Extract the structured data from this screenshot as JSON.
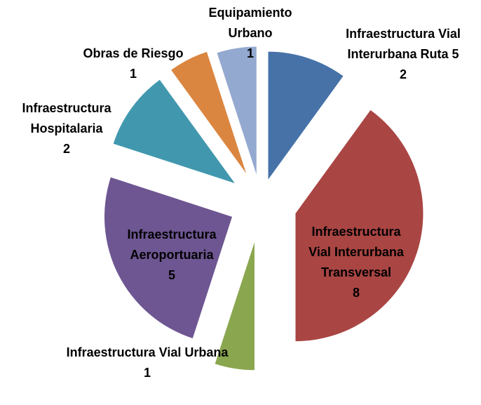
{
  "chart_data": {
    "type": "pie",
    "categories": [
      "Infraestructura Vial Interurbana Ruta 5",
      "Infraestructura Vial Interurbana Transversal",
      "Infraestructura Vial Urbana",
      "Infraestructura Aeroportuaria",
      "Infraestructura Hospitalaria",
      "Obras de Riesgo",
      "Equipamiento Urbano"
    ],
    "values": [
      2,
      8,
      1,
      5,
      2,
      1,
      1
    ],
    "colors": [
      "#4672a8",
      "#a94543",
      "#8aa64f",
      "#6e5692",
      "#4198ae",
      "#db8640",
      "#94a9d0"
    ]
  }
}
